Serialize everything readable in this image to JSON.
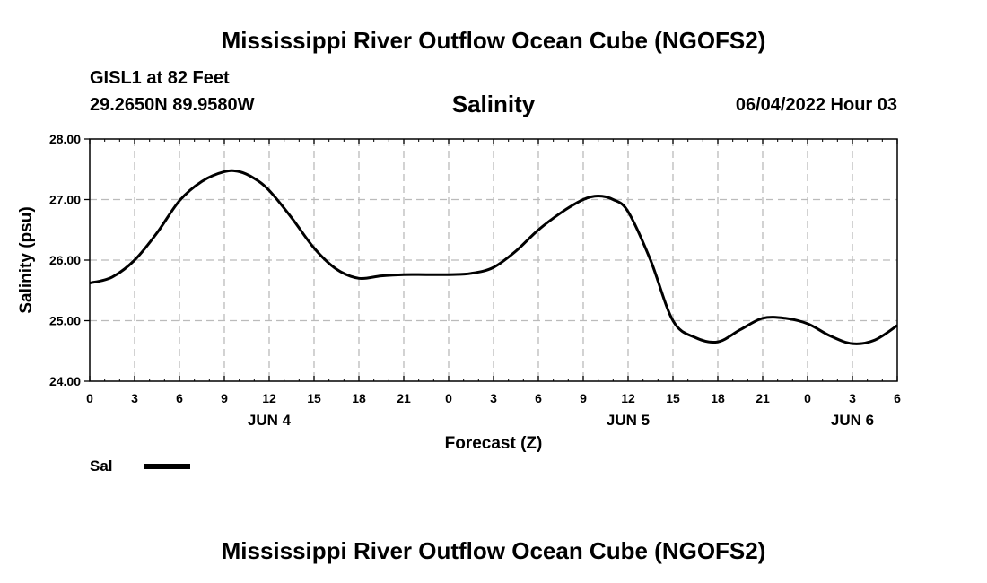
{
  "header": {
    "title": "Mississippi River Outflow Ocean Cube (NGOFS2)",
    "station": "GISL1 at 82 Feet",
    "coordinates": "29.2650N  89.9580W",
    "parameter": "Salinity",
    "datetime": "06/04/2022 Hour 03"
  },
  "footer": {
    "title": "Mississippi River Outflow Ocean Cube (NGOFS2)"
  },
  "legend": {
    "label": "Sal"
  },
  "chart_data": {
    "type": "line",
    "title": "Salinity",
    "xlabel": "Forecast (Z)",
    "ylabel": "Salinity (psu)",
    "xlim": [
      0,
      54
    ],
    "ylim": [
      24.0,
      28.0
    ],
    "y_ticks": [
      "24.00",
      "25.00",
      "26.00",
      "27.00",
      "28.00"
    ],
    "x_ticks": [
      {
        "x": 0,
        "label": "0"
      },
      {
        "x": 3,
        "label": "3"
      },
      {
        "x": 6,
        "label": "6"
      },
      {
        "x": 9,
        "label": "9"
      },
      {
        "x": 12,
        "label": "12"
      },
      {
        "x": 15,
        "label": "15"
      },
      {
        "x": 18,
        "label": "18"
      },
      {
        "x": 21,
        "label": "21"
      },
      {
        "x": 24,
        "label": "0"
      },
      {
        "x": 27,
        "label": "3"
      },
      {
        "x": 30,
        "label": "6"
      },
      {
        "x": 33,
        "label": "9"
      },
      {
        "x": 36,
        "label": "12"
      },
      {
        "x": 39,
        "label": "15"
      },
      {
        "x": 42,
        "label": "18"
      },
      {
        "x": 45,
        "label": "21"
      },
      {
        "x": 48,
        "label": "0"
      },
      {
        "x": 51,
        "label": "3"
      },
      {
        "x": 54,
        "label": "6"
      }
    ],
    "day_labels": [
      {
        "x": 12,
        "label": "JUN 4"
      },
      {
        "x": 36,
        "label": "JUN 5"
      },
      {
        "x": 51,
        "label": "JUN 6"
      }
    ],
    "series": [
      {
        "name": "Sal",
        "color": "#000000",
        "x": [
          0,
          1.5,
          3,
          4.5,
          6,
          7.5,
          9,
          10,
          11,
          12,
          13.5,
          15,
          16.5,
          18,
          19.5,
          21,
          22.5,
          24,
          25.5,
          27,
          28.5,
          30,
          31.5,
          33,
          34,
          35,
          36,
          37.5,
          39,
          40.5,
          42,
          43.5,
          45,
          46.5,
          48,
          49.5,
          51,
          52.5,
          54
        ],
        "values": [
          25.62,
          25.72,
          26.0,
          26.45,
          26.98,
          27.3,
          27.46,
          27.46,
          27.35,
          27.15,
          26.7,
          26.2,
          25.85,
          25.7,
          25.74,
          25.76,
          25.76,
          25.76,
          25.78,
          25.88,
          26.15,
          26.5,
          26.78,
          27.0,
          27.06,
          27.0,
          26.8,
          26.0,
          25.0,
          24.72,
          24.65,
          24.85,
          25.04,
          25.04,
          24.95,
          24.75,
          24.62,
          24.68,
          24.92
        ]
      }
    ]
  }
}
